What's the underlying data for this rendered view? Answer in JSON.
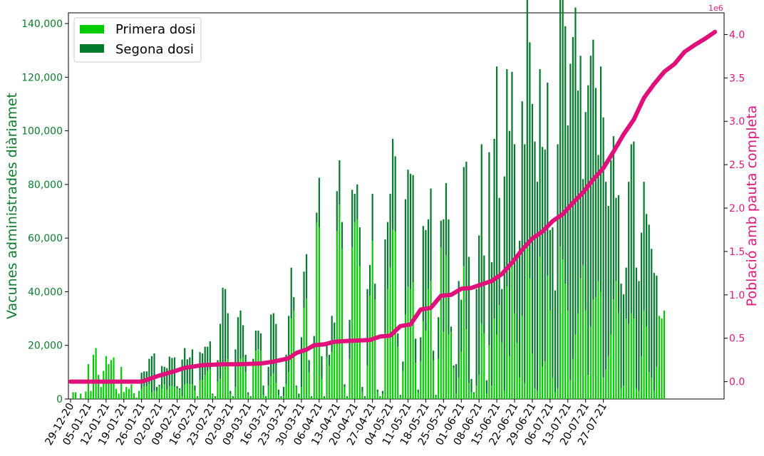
{
  "chart_data": {
    "type": "bar",
    "left_axis": {
      "label": "Vacunes administrades diàriamet",
      "ylim": [
        0,
        144000
      ],
      "ticks": [
        0,
        20000,
        40000,
        60000,
        80000,
        100000,
        120000,
        140000
      ],
      "tick_labels": [
        "0",
        "20,000",
        "40,000",
        "60,000",
        "80,000",
        "100,000",
        "120,000",
        "140,000"
      ],
      "color": "#0e7e2e"
    },
    "right_axis": {
      "label": "Població amb pauta completa",
      "ylim": [
        -0.2,
        4.25
      ],
      "ticks": [
        0,
        0.5,
        1,
        1.5,
        2,
        2.5,
        3,
        3.5,
        4
      ],
      "tick_labels": [
        "0.0",
        "0.5",
        "1.0",
        "1.5",
        "2.0",
        "2.5",
        "3.0",
        "3.5",
        "4.0"
      ],
      "offset_text": "1e6",
      "color": "#e0197d"
    },
    "x_tick_labels": [
      "29-12-20",
      "05-01-21",
      "12-01-21",
      "19-01-21",
      "26-01-21",
      "02-02-21",
      "09-02-21",
      "16-02-21",
      "23-02-21",
      "02-03-21",
      "09-03-21",
      "16-03-21",
      "23-03-21",
      "30-03-21",
      "06-04-21",
      "13-04-21",
      "20-04-21",
      "27-04-21",
      "04-05-21",
      "11-05-21",
      "18-05-21",
      "25-05-21",
      "01-06-21",
      "08-06-21",
      "15-06-21",
      "22-06-21",
      "29-06-21",
      "06-07-21",
      "13-07-21",
      "20-07-21",
      "27-07-21"
    ],
    "legend": [
      "Primera dosi",
      "Segona dosi"
    ],
    "legend_position": "top-left",
    "series_colors": {
      "primera": "#00cc00",
      "segona": "#047a2c"
    },
    "primera": [
      0,
      2500,
      2500,
      0,
      2000,
      0,
      2800,
      13000,
      3000,
      16500,
      19000,
      9000,
      4500,
      10500,
      16000,
      13000,
      14500,
      15500,
      3800,
      2000,
      12000,
      2600,
      4500,
      3800,
      5500,
      2200,
      500,
      3000,
      3800,
      4800,
      4800,
      5500,
      2500,
      3000,
      3000,
      4800,
      3800,
      5500,
      3500,
      4800,
      4800,
      4500,
      3800,
      3500,
      1200,
      5500,
      5800,
      5500,
      5500,
      3000,
      500,
      7000,
      7000,
      9000,
      10500,
      11000,
      1500,
      500,
      6500,
      7500,
      13500,
      14000,
      15000,
      2000,
      500,
      4500,
      13000,
      15000,
      15500,
      10000,
      1500,
      500,
      12500,
      18000,
      18500,
      18000,
      1500,
      500,
      5000,
      8500,
      9500,
      6000,
      1500,
      500,
      1000,
      5500,
      10000,
      30000,
      33000,
      4500,
      500,
      4500,
      34000,
      37500,
      10000,
      500,
      19000,
      66000,
      64000,
      7500,
      500,
      15500,
      12500,
      17500,
      22500,
      62500,
      72500,
      56000,
      4500,
      500,
      15000,
      56500,
      66000,
      67000,
      49500,
      2500,
      500,
      12500,
      38500,
      59000,
      37000,
      2500,
      500,
      2000,
      24500,
      41000,
      49000,
      63000,
      62500,
      19500,
      1000,
      10500,
      31500,
      42000,
      41000,
      43500,
      13500,
      2500,
      14000,
      29000,
      25500,
      41000,
      44000,
      14500,
      1000,
      15000,
      56500,
      25000,
      53500,
      24000,
      25000,
      11500,
      2000,
      8000,
      17500,
      49500,
      26000,
      6000,
      2500,
      2000,
      5000,
      9000,
      28000,
      24500,
      2000,
      20000,
      5000,
      30000,
      24000,
      35000,
      21000,
      3000,
      42000,
      16000,
      50000,
      32000,
      21000,
      8000,
      31000,
      6000,
      57000,
      45000,
      17000,
      4000,
      3000,
      53000,
      12000,
      14000,
      46000,
      33000,
      8000,
      2500,
      4000,
      57000,
      52000,
      43000,
      33000,
      7000,
      15000,
      24000,
      32000,
      45000,
      50000,
      33000,
      9000,
      27000,
      37000,
      38000,
      44000,
      40000,
      8000,
      11000,
      16000,
      24000,
      37000,
      44000,
      32000,
      4000,
      5000,
      30000,
      28000,
      32000,
      30000,
      4000,
      3000,
      16000,
      33000,
      27000,
      10000,
      8000,
      3000,
      12000,
      31000,
      30000,
      33000
    ],
    "segona": [
      0,
      0,
      0,
      0,
      0,
      0,
      0,
      0,
      0,
      0,
      0,
      0,
      0,
      0,
      0,
      0,
      0,
      0,
      0,
      0,
      0,
      0,
      0,
      0,
      0,
      0,
      0,
      0,
      6000,
      5500,
      5500,
      9500,
      13500,
      14000,
      1500,
      500,
      8500,
      6500,
      8000,
      11000,
      10500,
      11000,
      1000,
      500,
      13500,
      13500,
      9000,
      10000,
      13000,
      2000,
      500,
      10500,
      10000,
      10500,
      9000,
      10500,
      500,
      500,
      8000,
      20500,
      28000,
      27000,
      17000,
      1000,
      500,
      14000,
      17500,
      18000,
      12000,
      6500,
      1000,
      500,
      2500,
      7500,
      7000,
      6500,
      3500,
      500,
      7000,
      23000,
      22500,
      22000,
      2000,
      500,
      3500,
      11000,
      21000,
      19000,
      5000,
      500,
      1500,
      18500,
      13500,
      16500,
      4500,
      500,
      4500,
      3500,
      18500,
      8500,
      500,
      4500,
      4000,
      13500,
      6000,
      15000,
      16500,
      10000,
      1000,
      500,
      14500,
      21500,
      10500,
      13000,
      14500,
      2000,
      500,
      28500,
      11500,
      17500,
      6000,
      1000,
      500,
      1000,
      35000,
      25000,
      27500,
      34000,
      28000,
      5000,
      500,
      3500,
      43000,
      43500,
      43000,
      40000,
      9000,
      1000,
      9000,
      35500,
      37500,
      26000,
      34500,
      3500,
      500,
      15500,
      10000,
      42000,
      27000,
      43000,
      2000,
      1000,
      11000,
      36000,
      19500,
      37000,
      62500,
      47000,
      5000,
      500,
      36000,
      52000,
      67000,
      29000,
      5000,
      72000,
      46000,
      67000,
      100000,
      40000,
      20000,
      80000,
      81000,
      84000,
      72000,
      63000,
      33000,
      51000,
      80000,
      89000,
      111000,
      88000,
      93000,
      92000,
      78000,
      70000,
      82000,
      79000,
      72000,
      30000,
      56000,
      38000,
      91000,
      100000,
      113000,
      96000,
      69000,
      118000,
      120000,
      122000,
      83000,
      83000,
      32000,
      74000,
      108000,
      101000,
      97000,
      78000,
      47000,
      84000,
      97000,
      70000,
      56000,
      65000,
      61000,
      31000,
      44000,
      39000,
      34000,
      19000,
      53000,
      63000,
      66000,
      45000,
      41000,
      46000,
      48000,
      42000,
      55000,
      48000,
      44000,
      34000
    ],
    "poblacio_pauta_completa": [
      [
        0,
        0
      ],
      [
        28,
        0
      ],
      [
        31,
        0.03
      ],
      [
        35,
        0.07
      ],
      [
        41,
        0.12
      ],
      [
        45,
        0.16
      ],
      [
        52,
        0.19
      ],
      [
        60,
        0.2
      ],
      [
        66,
        0.2
      ],
      [
        75,
        0.21
      ],
      [
        80,
        0.23
      ],
      [
        86,
        0.27
      ],
      [
        89,
        0.33
      ],
      [
        93,
        0.37
      ],
      [
        96,
        0.42
      ],
      [
        100,
        0.43
      ],
      [
        104,
        0.46
      ],
      [
        110,
        0.47
      ],
      [
        118,
        0.48
      ],
      [
        122,
        0.52
      ],
      [
        126,
        0.53
      ],
      [
        130,
        0.64
      ],
      [
        134,
        0.66
      ],
      [
        138,
        0.83
      ],
      [
        142,
        0.85
      ],
      [
        146,
        0.99
      ],
      [
        150,
        1.0
      ],
      [
        154,
        1.07
      ],
      [
        158,
        1.08
      ],
      [
        162,
        1.12
      ],
      [
        166,
        1.16
      ],
      [
        170,
        1.24
      ],
      [
        174,
        1.37
      ],
      [
        178,
        1.52
      ],
      [
        182,
        1.65
      ],
      [
        186,
        1.73
      ],
      [
        190,
        1.85
      ],
      [
        194,
        1.93
      ],
      [
        198,
        2.06
      ],
      [
        202,
        2.18
      ],
      [
        206,
        2.33
      ],
      [
        210,
        2.46
      ],
      [
        214,
        2.65
      ],
      [
        218,
        2.85
      ],
      [
        222,
        3.02
      ],
      [
        226,
        3.27
      ],
      [
        230,
        3.43
      ],
      [
        234,
        3.57
      ],
      [
        238,
        3.66
      ],
      [
        242,
        3.8
      ],
      [
        246,
        3.88
      ],
      [
        250,
        3.95
      ],
      [
        254,
        4.03
      ]
    ]
  }
}
